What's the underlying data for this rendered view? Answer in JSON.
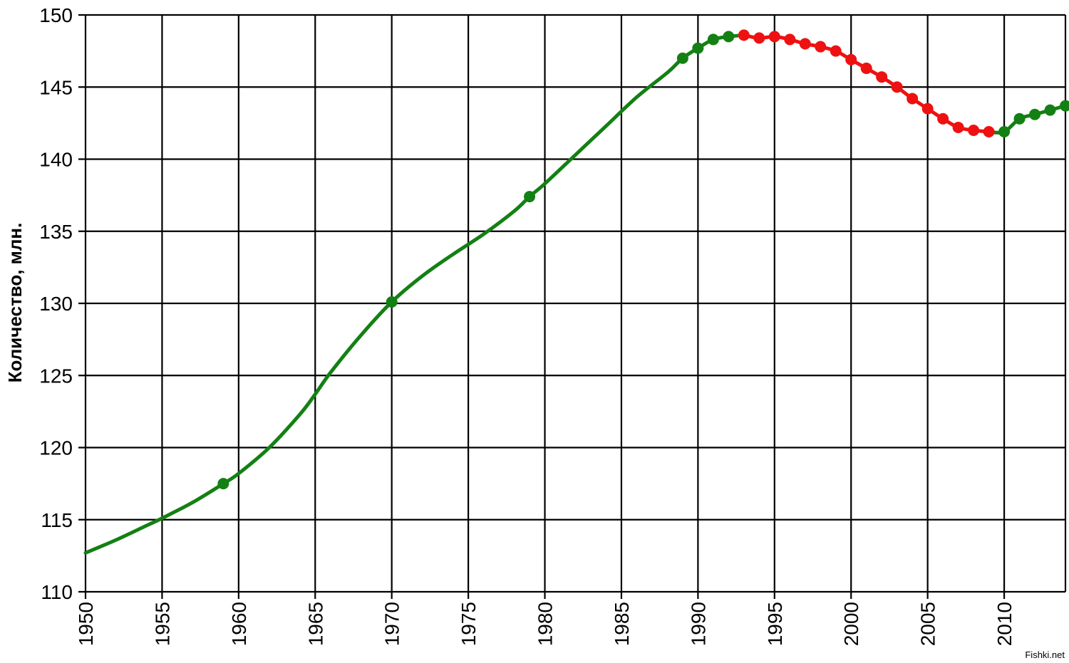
{
  "chart_data": {
    "type": "line",
    "title": "",
    "xlabel": "",
    "ylabel": "Количество, млн.",
    "xlim": [
      1950,
      2014
    ],
    "ylim": [
      110,
      150
    ],
    "x_ticks": [
      "1950",
      "1955",
      "1960",
      "1965",
      "1970",
      "1975",
      "1980",
      "1985",
      "1990",
      "1995",
      "2000",
      "2005",
      "2010"
    ],
    "y_ticks": [
      "110",
      "115",
      "120",
      "125",
      "130",
      "135",
      "140",
      "145",
      "150"
    ],
    "grid": true,
    "colors": {
      "growth": "#138013",
      "decline": "#ee1111",
      "grid": "#000000"
    },
    "curve": {
      "x": [
        1950,
        1952,
        1954,
        1955,
        1957,
        1959,
        1960,
        1962,
        1964,
        1965,
        1966,
        1968,
        1970,
        1972,
        1974,
        1976,
        1978,
        1979,
        1980,
        1982,
        1984,
        1986,
        1988,
        1989,
        1990,
        1991,
        1992,
        1993,
        1994,
        1995,
        1996,
        1997,
        1998,
        1999,
        2000,
        2001,
        2002,
        2003,
        2004,
        2005,
        2006,
        2007,
        2008,
        2009,
        2010,
        2011,
        2012,
        2013,
        2014
      ],
      "y": [
        112.7,
        113.6,
        114.6,
        115.1,
        116.2,
        117.5,
        118.2,
        120.0,
        122.3,
        123.7,
        125.2,
        127.8,
        130.1,
        131.9,
        133.4,
        134.8,
        136.4,
        137.4,
        138.3,
        140.3,
        142.3,
        144.3,
        146.0,
        147.0,
        147.7,
        148.3,
        148.5,
        148.6,
        148.4,
        148.5,
        148.3,
        148.0,
        147.8,
        147.5,
        146.9,
        146.3,
        145.7,
        145.0,
        144.2,
        143.5,
        142.8,
        142.2,
        142.0,
        141.9,
        141.9,
        142.8,
        143.1,
        143.4,
        143.7
      ]
    },
    "series": [
      {
        "name": "",
        "color": "#138013",
        "from": 1950,
        "to": 1993
      },
      {
        "name": "",
        "color": "#ee1111",
        "from": 1993,
        "to": 2009
      },
      {
        "name": "",
        "color": "#138013",
        "from": 2009,
        "to": 2014
      }
    ],
    "points": [
      {
        "x": 1959,
        "y": 117.5,
        "color": "#138013"
      },
      {
        "x": 1970,
        "y": 130.1,
        "color": "#138013"
      },
      {
        "x": 1979,
        "y": 137.4,
        "color": "#138013"
      },
      {
        "x": 1989,
        "y": 147.0,
        "color": "#138013"
      },
      {
        "x": 1990,
        "y": 147.7,
        "color": "#138013"
      },
      {
        "x": 1991,
        "y": 148.3,
        "color": "#138013"
      },
      {
        "x": 1992,
        "y": 148.5,
        "color": "#138013"
      },
      {
        "x": 1993,
        "y": 148.6,
        "color": "#ee1111"
      },
      {
        "x": 1994,
        "y": 148.4,
        "color": "#ee1111"
      },
      {
        "x": 1995,
        "y": 148.5,
        "color": "#ee1111"
      },
      {
        "x": 1996,
        "y": 148.3,
        "color": "#ee1111"
      },
      {
        "x": 1997,
        "y": 148.0,
        "color": "#ee1111"
      },
      {
        "x": 1998,
        "y": 147.8,
        "color": "#ee1111"
      },
      {
        "x": 1999,
        "y": 147.5,
        "color": "#ee1111"
      },
      {
        "x": 2000,
        "y": 146.9,
        "color": "#ee1111"
      },
      {
        "x": 2001,
        "y": 146.3,
        "color": "#ee1111"
      },
      {
        "x": 2002,
        "y": 145.7,
        "color": "#ee1111"
      },
      {
        "x": 2003,
        "y": 145.0,
        "color": "#ee1111"
      },
      {
        "x": 2004,
        "y": 144.2,
        "color": "#ee1111"
      },
      {
        "x": 2005,
        "y": 143.5,
        "color": "#ee1111"
      },
      {
        "x": 2006,
        "y": 142.8,
        "color": "#ee1111"
      },
      {
        "x": 2007,
        "y": 142.2,
        "color": "#ee1111"
      },
      {
        "x": 2008,
        "y": 142.0,
        "color": "#ee1111"
      },
      {
        "x": 2009,
        "y": 141.9,
        "color": "#ee1111"
      },
      {
        "x": 2010,
        "y": 141.9,
        "color": "#138013"
      },
      {
        "x": 2011,
        "y": 142.8,
        "color": "#138013"
      },
      {
        "x": 2012,
        "y": 143.1,
        "color": "#138013"
      },
      {
        "x": 2013,
        "y": 143.4,
        "color": "#138013"
      },
      {
        "x": 2014,
        "y": 143.7,
        "color": "#138013"
      }
    ]
  },
  "watermark": "Fishki.net"
}
